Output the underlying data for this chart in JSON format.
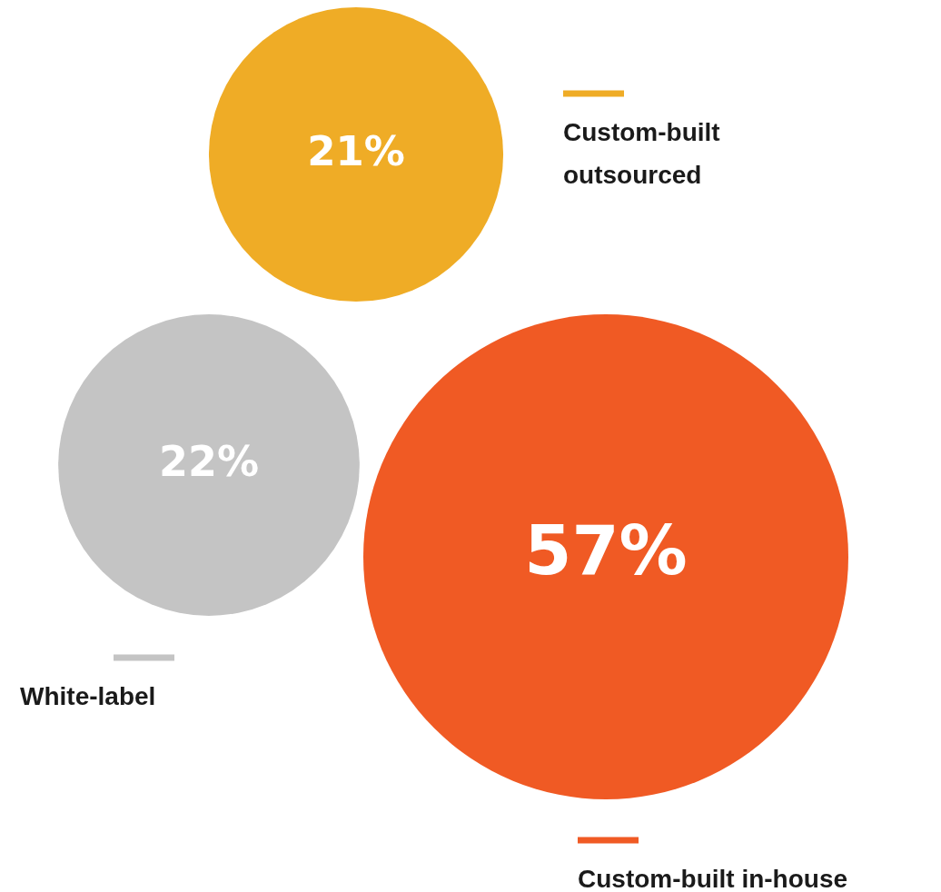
{
  "chart_data": {
    "type": "other",
    "categories": [
      "Custom-built outsourced",
      "White-label",
      "Custom-built in-house"
    ],
    "values": [
      21,
      22,
      57
    ],
    "colors": [
      "#efac26",
      "#c4c4c4",
      "#f05a24"
    ],
    "value_labels": [
      "21%",
      "22%",
      "57%"
    ]
  }
}
